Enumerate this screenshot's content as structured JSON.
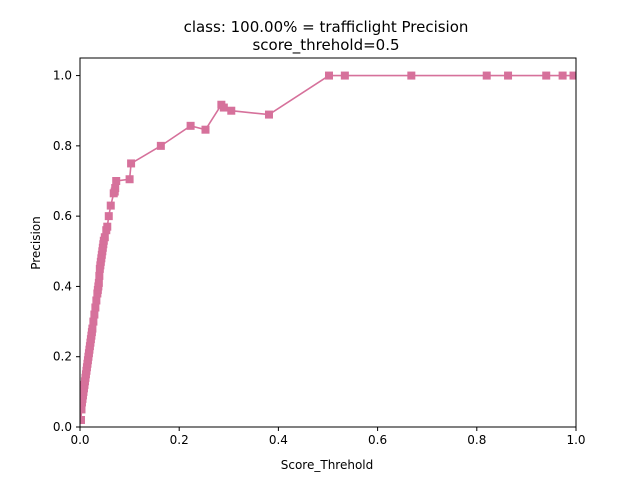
{
  "chart_data": {
    "type": "line",
    "title": "class: 100.00% = trafficlight Precision",
    "subtitle": "score_threhold=0.5",
    "xlabel": "Score_Threhold",
    "ylabel": "Precision",
    "xlim": [
      0.0,
      1.0
    ],
    "ylim": [
      0.0,
      1.05
    ],
    "xticks": [
      0.0,
      0.2,
      0.4,
      0.6,
      0.8,
      1.0
    ],
    "xtick_labels": [
      "0.0",
      "0.2",
      "0.4",
      "0.6",
      "0.8",
      "1.0"
    ],
    "yticks": [
      0.0,
      0.2,
      0.4,
      0.6,
      0.8,
      1.0
    ],
    "ytick_labels": [
      "0.0",
      "0.2",
      "0.4",
      "0.6",
      "0.8",
      "1.0"
    ],
    "grid": false,
    "legend": "none",
    "marker": "square",
    "color": "#d6719b",
    "series": [
      {
        "x": [
          0.002,
          0.003,
          0.004,
          0.005,
          0.006,
          0.007,
          0.008,
          0.009,
          0.01,
          0.011,
          0.012,
          0.013,
          0.014,
          0.015,
          0.016,
          0.017,
          0.018,
          0.019,
          0.02,
          0.021,
          0.022,
          0.023,
          0.024,
          0.025,
          0.027,
          0.029,
          0.031,
          0.033,
          0.035,
          0.036,
          0.037,
          0.038,
          0.039,
          0.04,
          0.041,
          0.042,
          0.043,
          0.044,
          0.045,
          0.046,
          0.047,
          0.048,
          0.05,
          0.053,
          0.055,
          0.058,
          0.062,
          0.068,
          0.07,
          0.071,
          0.073,
          0.1,
          0.103,
          0.163,
          0.223,
          0.253,
          0.285,
          0.29,
          0.305,
          0.381,
          0.502,
          0.534,
          0.668,
          0.82,
          0.863,
          0.94,
          0.973,
          0.995
        ],
        "y": [
          0.02,
          0.05,
          0.07,
          0.08,
          0.09,
          0.1,
          0.11,
          0.12,
          0.13,
          0.14,
          0.15,
          0.16,
          0.17,
          0.18,
          0.19,
          0.2,
          0.21,
          0.22,
          0.23,
          0.24,
          0.25,
          0.26,
          0.27,
          0.28,
          0.3,
          0.32,
          0.34,
          0.36,
          0.38,
          0.39,
          0.4,
          0.41,
          0.43,
          0.45,
          0.46,
          0.47,
          0.48,
          0.49,
          0.5,
          0.51,
          0.52,
          0.53,
          0.54,
          0.56,
          0.57,
          0.6,
          0.63,
          0.665,
          0.67,
          0.68,
          0.7,
          0.705,
          0.75,
          0.8,
          0.857,
          0.846,
          0.917,
          0.909,
          0.9,
          0.889,
          1.0,
          1.0,
          1.0,
          1.0,
          1.0,
          1.0,
          1.0,
          1.0
        ]
      }
    ]
  }
}
